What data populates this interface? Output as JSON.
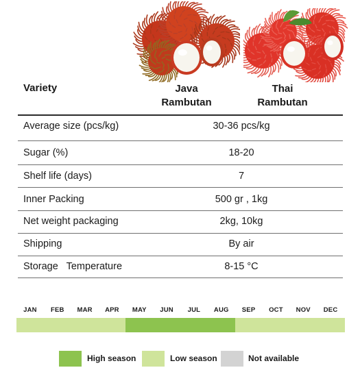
{
  "colors": {
    "high_season": "#8dc34f",
    "low_season": "#cfe49b",
    "not_available": "#d3d3d3",
    "rule": "#2a2a2a"
  },
  "illustrations": {
    "java_icon": "java-rambutan-icon",
    "thai_icon": "thai-rambutan-icon"
  },
  "table": {
    "header": {
      "variety": "Variety",
      "java_line1": "Java",
      "java_line2": "Rambutan",
      "thai_line1": "Thai",
      "thai_line2": "Rambutan"
    },
    "rows": [
      {
        "label": "Average size (pcs/kg)",
        "value": "30-36 pcs/kg"
      },
      {
        "label": "Sugar (%)",
        "value": "18-20"
      },
      {
        "label": "Shelf life (days)",
        "value": "7"
      },
      {
        "label": "Inner Packing",
        "value": "500 gr , 1kg"
      },
      {
        "label": "Net weight packaging",
        "value": "2kg, 10kg"
      },
      {
        "label": "Shipping",
        "value": "By air"
      },
      {
        "label": "Storage   Temperature",
        "value": "8-15 °C"
      }
    ]
  },
  "season": {
    "months": [
      "JAN",
      "FEB",
      "MAR",
      "APR",
      "MAY",
      "JUN",
      "JUL",
      "AUG",
      "SEP",
      "OCT",
      "NOV",
      "DEC"
    ],
    "status": [
      "low",
      "low",
      "low",
      "low",
      "high",
      "high",
      "high",
      "high",
      "low",
      "low",
      "low",
      "low"
    ]
  },
  "legend": {
    "high": "High season",
    "low": "Low season",
    "na": "Not available"
  }
}
